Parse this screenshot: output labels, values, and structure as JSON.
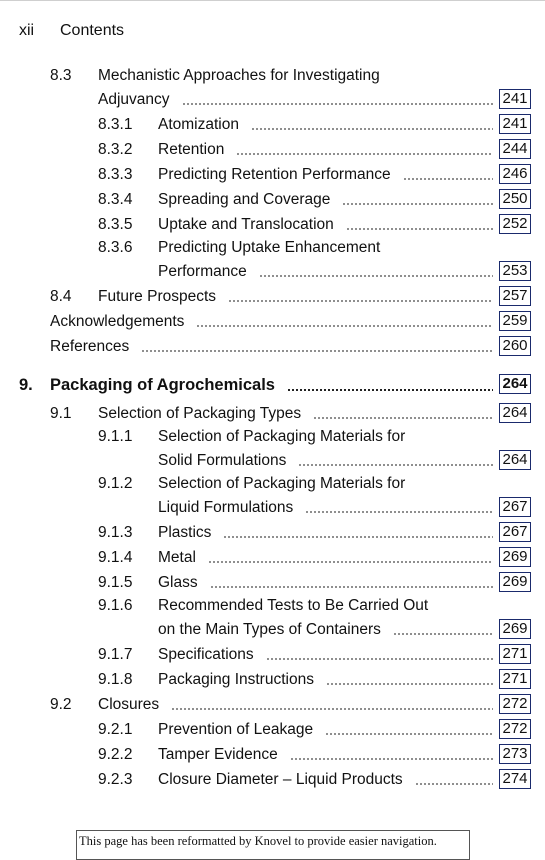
{
  "header": {
    "page_number": "xii",
    "title": "Contents"
  },
  "entries": [
    {
      "num": "8.3",
      "line1": "Mechanistic Approaches for Investigating",
      "title": "Adjuvancy",
      "page": "241"
    },
    {
      "num": "8.3.1",
      "title": "Atomization",
      "page": "241"
    },
    {
      "num": "8.3.2",
      "title": "Retention",
      "page": "244"
    },
    {
      "num": "8.3.3",
      "title": "Predicting Retention Performance",
      "page": "246"
    },
    {
      "num": "8.3.4",
      "title": "Spreading and Coverage",
      "page": "250"
    },
    {
      "num": "8.3.5",
      "title": "Uptake and Translocation",
      "page": "252"
    },
    {
      "num": "8.3.6",
      "line1": "Predicting Uptake Enhancement",
      "title": "Performance",
      "page": "253"
    },
    {
      "num": "8.4",
      "title": "Future Prospects",
      "page": "257"
    },
    {
      "num": "",
      "title": "Acknowledgements",
      "page": "259"
    },
    {
      "num": "",
      "title": "References",
      "page": "260"
    },
    {
      "num": "9.",
      "title": "Packaging of Agrochemicals",
      "page": "264"
    },
    {
      "num": "9.1",
      "title": "Selection of Packaging Types",
      "page": "264"
    },
    {
      "num": "9.1.1",
      "line1": "Selection of Packaging Materials for",
      "title": "Solid Formulations",
      "page": "264"
    },
    {
      "num": "9.1.2",
      "line1": "Selection of Packaging Materials for",
      "title": "Liquid Formulations",
      "page": "267"
    },
    {
      "num": "9.1.3",
      "title": "Plastics",
      "page": "267"
    },
    {
      "num": "9.1.4",
      "title": "Metal",
      "page": "269"
    },
    {
      "num": "9.1.5",
      "title": "Glass",
      "page": "269"
    },
    {
      "num": "9.1.6",
      "line1": "Recommended Tests to Be Carried Out",
      "title": "on the Main Types of Containers",
      "page": "269"
    },
    {
      "num": "9.1.7",
      "title": "Specifications",
      "page": "271"
    },
    {
      "num": "9.1.8",
      "title": "Packaging Instructions",
      "page": "271"
    },
    {
      "num": "9.2",
      "title": "Closures",
      "page": "272"
    },
    {
      "num": "9.2.1",
      "title": "Prevention of Leakage",
      "page": "272"
    },
    {
      "num": "9.2.2",
      "title": "Tamper Evidence",
      "page": "273"
    },
    {
      "num": "9.2.3",
      "title": "Closure Diameter – Liquid Products",
      "page": "274"
    }
  ],
  "footer": {
    "text": "This page has been reformatted by Knovel to provide easier navigation."
  },
  "colors": {
    "page_box_border": "#1a2a6c",
    "text": "#111111"
  }
}
